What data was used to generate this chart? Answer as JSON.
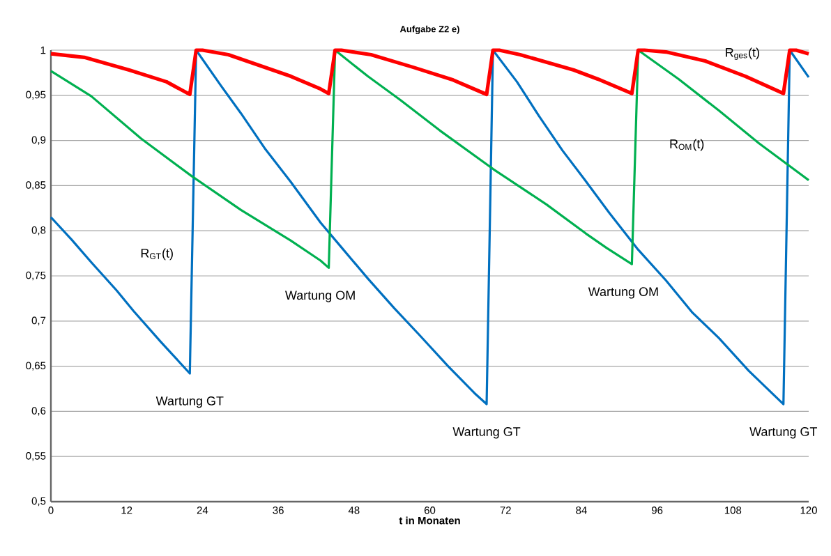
{
  "chart_data": {
    "type": "line",
    "title": "Aufgabe Z2 e)",
    "xlabel": "t in Monaten",
    "xlim": [
      0,
      120
    ],
    "xticks": [
      0,
      12,
      24,
      36,
      48,
      60,
      72,
      84,
      96,
      108,
      120
    ],
    "ylim": [
      0.5,
      1
    ],
    "yticks": [
      {
        "value": 0.5,
        "label": "0,5"
      },
      {
        "value": 0.55,
        "label": "0,55"
      },
      {
        "value": 0.6,
        "label": "0,6"
      },
      {
        "value": 0.65,
        "label": "0,65"
      },
      {
        "value": 0.7,
        "label": "0,7"
      },
      {
        "value": 0.75,
        "label": "0,75"
      },
      {
        "value": 0.8,
        "label": "0,8"
      },
      {
        "value": 0.85,
        "label": "0,85"
      },
      {
        "value": 0.9,
        "label": "0,9"
      },
      {
        "value": 0.95,
        "label": "0,95"
      },
      {
        "value": 1,
        "label": "1"
      }
    ],
    "grid": "y",
    "series": [
      {
        "name": "R$_{GT}$(t)",
        "color": "#0070c0",
        "x": [
          0,
          3.3,
          6.4,
          10.4,
          13.1,
          17.4,
          22,
          23,
          26.9,
          30.1,
          34,
          38,
          42.7,
          45.6,
          50.2,
          54.4,
          58.3,
          62.9,
          67.1,
          69,
          70,
          73.8,
          77.3,
          81,
          84.7,
          88.4,
          93,
          97.4,
          101.5,
          105.8,
          110.5,
          116,
          117,
          120
        ],
        "values": [
          0.815,
          0.79,
          0.765,
          0.734,
          0.711,
          0.677,
          0.642,
          1,
          0.961,
          0.93,
          0.89,
          0.854,
          0.809,
          0.785,
          0.747,
          0.714,
          0.685,
          0.65,
          0.62,
          0.608,
          1,
          0.965,
          0.927,
          0.889,
          0.855,
          0.82,
          0.779,
          0.745,
          0.71,
          0.681,
          0.645,
          0.608,
          1,
          0.97
        ]
      },
      {
        "name": "R$_{OM}$(t)",
        "color": "#00b050",
        "x": [
          0,
          6.4,
          14.3,
          22.2,
          30.1,
          38,
          42.7,
          44,
          45,
          50.2,
          55.3,
          61.6,
          70.1,
          78.5,
          84.7,
          88,
          92,
          93,
          99.4,
          105.8,
          112.1,
          120
        ],
        "values": [
          0.977,
          0.949,
          0.902,
          0.861,
          0.823,
          0.789,
          0.767,
          0.759,
          1,
          0.971,
          0.945,
          0.911,
          0.868,
          0.829,
          0.797,
          0.781,
          0.763,
          1,
          0.968,
          0.933,
          0.897,
          0.856
        ]
      },
      {
        "name": "R$_{ges}$(t)",
        "color": "#ff0000",
        "x": [
          0,
          5.3,
          12.4,
          18.3,
          22,
          23,
          24,
          28.1,
          38,
          42.7,
          44,
          45,
          46,
          50.7,
          57.4,
          63.7,
          69,
          70,
          71,
          74.3,
          82.8,
          86.6,
          92,
          93,
          94,
          97.4,
          103.6,
          110,
          116,
          117,
          118,
          120
        ],
        "values": [
          0.996,
          0.992,
          0.978,
          0.965,
          0.951,
          1,
          1,
          0.995,
          0.971,
          0.957,
          0.952,
          1,
          1,
          0.995,
          0.981,
          0.967,
          0.951,
          1,
          1,
          0.995,
          0.978,
          0.968,
          0.952,
          1,
          1,
          0.998,
          0.988,
          0.971,
          0.952,
          1,
          1,
          0.996
        ]
      }
    ],
    "annotations": [
      {
        "text": "Wartung GT",
        "x": 22,
        "y": 0.642
      },
      {
        "text": "Wartung OM",
        "x": 44,
        "y": 0.759
      },
      {
        "text": "Wartung GT",
        "x": 69,
        "y": 0.608
      },
      {
        "text": "Wartung OM",
        "x": 92,
        "y": 0.763
      },
      {
        "text": "Wartung GT",
        "x": 116,
        "y": 0.608
      }
    ]
  }
}
